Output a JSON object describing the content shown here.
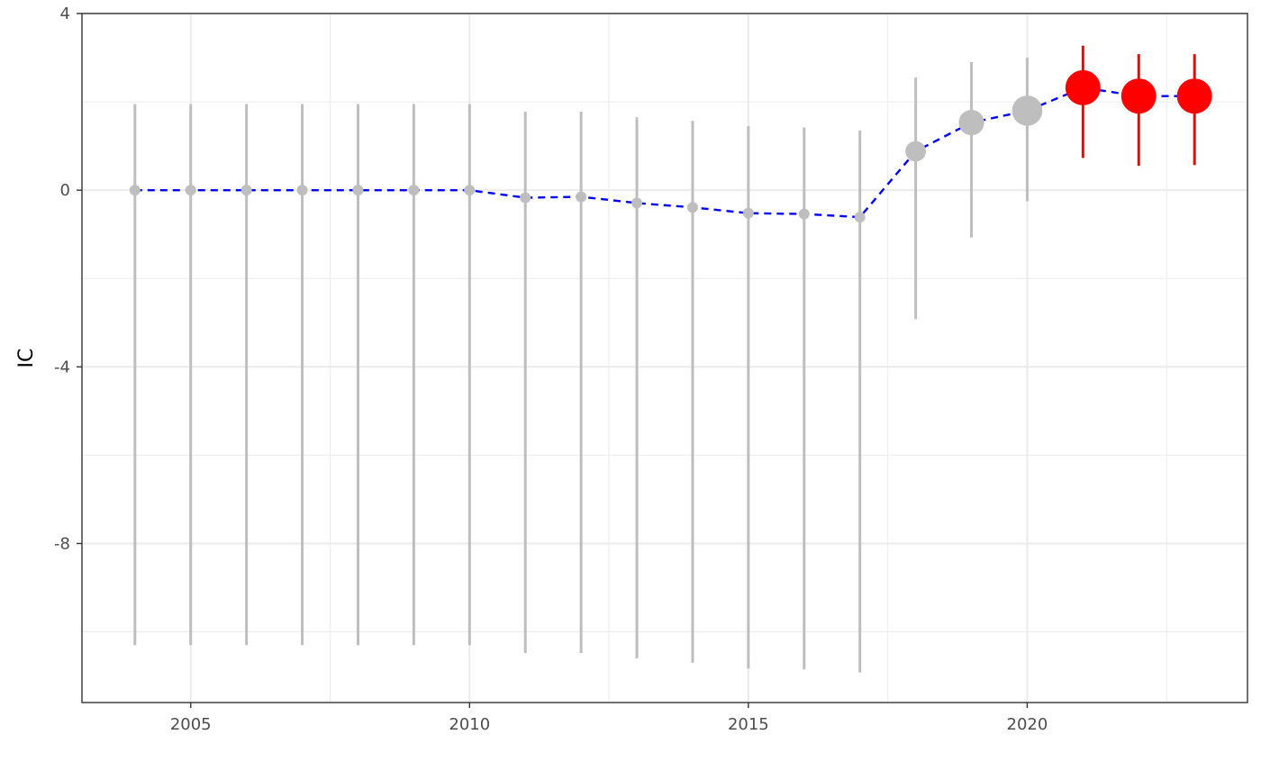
{
  "chart_data": {
    "type": "scatter",
    "title": "",
    "xlabel": "",
    "ylabel": "IC",
    "xlim": [
      2003.05,
      2023.95
    ],
    "ylim": [
      -11.6,
      4
    ],
    "x_ticks": [
      2005,
      2010,
      2015,
      2020
    ],
    "x_tick_labels": [
      "2005",
      "2010",
      "2015",
      "2020"
    ],
    "y_ticks": [
      -8,
      -4,
      0,
      4
    ],
    "y_tick_labels": [
      "-8",
      "-4",
      "0",
      "4"
    ],
    "x_minor_ticks": [
      2007.5,
      2012.5,
      2017.5,
      2022.5
    ],
    "y_minor_ticks": [
      -10,
      -6,
      -2,
      2
    ],
    "grid": true,
    "legend": "none",
    "colors": {
      "highlight": "#ff0000",
      "normal": "#bebebe",
      "trend_line": "#0000ff",
      "grid": "#ebebeb",
      "panel_border": "#333333"
    },
    "series": [
      {
        "name": "IC",
        "points": [
          {
            "x": 2004,
            "y": 0.0,
            "lower": -10.3,
            "upper": 1.95,
            "size": 1.0,
            "highlight": false
          },
          {
            "x": 2005,
            "y": 0.0,
            "lower": -10.3,
            "upper": 1.95,
            "size": 1.0,
            "highlight": false
          },
          {
            "x": 2006,
            "y": 0.0,
            "lower": -10.3,
            "upper": 1.95,
            "size": 1.0,
            "highlight": false
          },
          {
            "x": 2007,
            "y": 0.0,
            "lower": -10.3,
            "upper": 1.95,
            "size": 1.0,
            "highlight": false
          },
          {
            "x": 2008,
            "y": 0.0,
            "lower": -10.3,
            "upper": 1.95,
            "size": 1.0,
            "highlight": false
          },
          {
            "x": 2009,
            "y": 0.0,
            "lower": -10.3,
            "upper": 1.95,
            "size": 1.0,
            "highlight": false
          },
          {
            "x": 2010,
            "y": 0.0,
            "lower": -10.3,
            "upper": 1.95,
            "size": 1.0,
            "highlight": false
          },
          {
            "x": 2011,
            "y": -0.17,
            "lower": -10.48,
            "upper": 1.78,
            "size": 1.0,
            "highlight": false
          },
          {
            "x": 2012,
            "y": -0.15,
            "lower": -10.48,
            "upper": 1.78,
            "size": 1.0,
            "highlight": false
          },
          {
            "x": 2013,
            "y": -0.29,
            "lower": -10.6,
            "upper": 1.65,
            "size": 1.0,
            "highlight": false
          },
          {
            "x": 2014,
            "y": -0.39,
            "lower": -10.7,
            "upper": 1.57,
            "size": 1.0,
            "highlight": false
          },
          {
            "x": 2015,
            "y": -0.52,
            "lower": -10.83,
            "upper": 1.45,
            "size": 1.0,
            "highlight": false
          },
          {
            "x": 2016,
            "y": -0.54,
            "lower": -10.85,
            "upper": 1.42,
            "size": 1.0,
            "highlight": false
          },
          {
            "x": 2017,
            "y": -0.61,
            "lower": -10.92,
            "upper": 1.35,
            "size": 1.0,
            "highlight": false
          },
          {
            "x": 2018,
            "y": 0.88,
            "lower": -2.92,
            "upper": 2.55,
            "size": 2.0,
            "highlight": false
          },
          {
            "x": 2019,
            "y": 1.53,
            "lower": -1.07,
            "upper": 2.9,
            "size": 2.5,
            "highlight": false
          },
          {
            "x": 2020,
            "y": 1.8,
            "lower": -0.25,
            "upper": 3.0,
            "size": 3.0,
            "highlight": false
          },
          {
            "x": 2021,
            "y": 2.32,
            "lower": 0.73,
            "upper": 3.27,
            "size": 3.5,
            "highlight": true
          },
          {
            "x": 2022,
            "y": 2.13,
            "lower": 0.55,
            "upper": 3.08,
            "size": 3.5,
            "highlight": true
          },
          {
            "x": 2023,
            "y": 2.13,
            "lower": 0.57,
            "upper": 3.08,
            "size": 3.5,
            "highlight": true
          }
        ]
      }
    ]
  }
}
